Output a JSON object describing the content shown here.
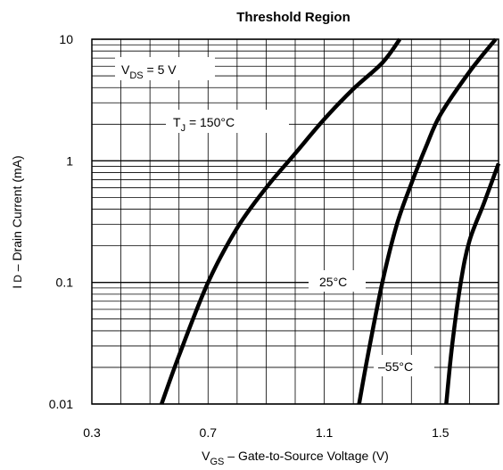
{
  "chart_data": {
    "type": "line",
    "title": "Threshold Region",
    "x_label": {
      "main": "V",
      "sub": "GS",
      "rest": " – Gate-to-Source Voltage (V)"
    },
    "y_label": {
      "main": "I",
      "sub": "D",
      "rest": " – Drain Current (mA)"
    },
    "x_range": [
      0.3,
      1.7
    ],
    "y_range": [
      0.01,
      10
    ],
    "y_scale": "log",
    "x_ticks": [
      "0.3",
      "0.7",
      "1.1",
      "1.5"
    ],
    "y_ticks": [
      "0.01",
      "0.1",
      "1",
      "10"
    ],
    "grid": true,
    "annotations": [
      {
        "id": "vds",
        "main": "V",
        "sub": "DS",
        "rest": " = 5 V"
      },
      {
        "id": "tj150",
        "main": "T",
        "sub": "J",
        "rest": " = 150°C"
      },
      {
        "id": "t25",
        "text": "25°C"
      },
      {
        "id": "tm55",
        "text": "–55°C"
      }
    ],
    "series": [
      {
        "points": [
          [
            0.54,
            0.01
          ],
          [
            0.6,
            0.025
          ],
          [
            0.7,
            0.1
          ],
          [
            0.8,
            0.28
          ],
          [
            0.9,
            0.6
          ],
          [
            1.0,
            1.15
          ],
          [
            1.1,
            2.2
          ],
          [
            1.2,
            3.9
          ],
          [
            1.3,
            6.4
          ],
          [
            1.36,
            10
          ]
        ]
      },
      {
        "points": [
          [
            1.22,
            0.01
          ],
          [
            1.25,
            0.025
          ],
          [
            1.3,
            0.1
          ],
          [
            1.35,
            0.3
          ],
          [
            1.4,
            0.65
          ],
          [
            1.45,
            1.3
          ],
          [
            1.5,
            2.4
          ],
          [
            1.6,
            5.4
          ],
          [
            1.69,
            10
          ]
        ]
      },
      {
        "points": [
          [
            1.52,
            0.01
          ],
          [
            1.54,
            0.03
          ],
          [
            1.57,
            0.1
          ],
          [
            1.6,
            0.22
          ],
          [
            1.65,
            0.45
          ],
          [
            1.7,
            0.95
          ]
        ]
      }
    ]
  }
}
